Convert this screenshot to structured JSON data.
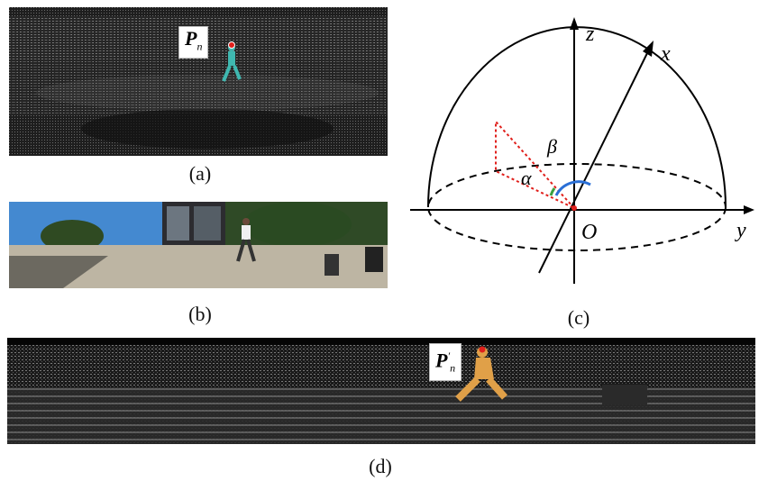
{
  "captions": {
    "a": "(a)",
    "b": "(b)",
    "c": "(c)",
    "d": "(d)"
  },
  "panel_a": {
    "label_main": "P",
    "label_sub": "n",
    "figure_color": "#3fb8b0",
    "marker_color": "#e0201c"
  },
  "panel_d": {
    "label_main": "P",
    "label_sup": "′",
    "label_sub": "n",
    "figure_color": "#e0a048",
    "marker_color": "#e0201c"
  },
  "axes": {
    "z": "z",
    "x": "x",
    "y": "y",
    "origin": "O",
    "alpha": "α",
    "beta": "β"
  },
  "colors": {
    "triangle": "#e0201c",
    "alpha_arc": "#3aa040",
    "beta_arc": "#2a6fd6",
    "sky": "#3a7fc8"
  }
}
